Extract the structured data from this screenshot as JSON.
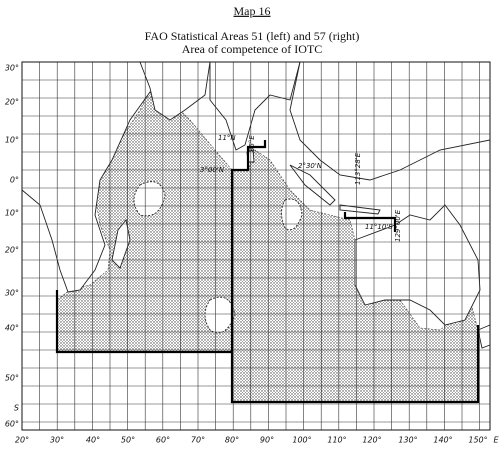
{
  "header": {
    "label": "Map 16",
    "title": "FAO Statistical Areas 51 (left) and 57 (right)",
    "subtitle": "Area of competence of IOTC"
  },
  "latitude_labels": [
    "30°",
    "20°",
    "10°",
    "0°",
    "10°",
    "20°",
    "30°",
    "40°",
    "50°",
    "S",
    "60°"
  ],
  "longitude_labels": [
    "20°",
    "30°",
    "40°",
    "50°",
    "60°",
    "70°",
    "80°",
    "90°",
    "100°",
    "110°",
    "120°",
    "130°",
    "140°",
    "150°",
    "E"
  ],
  "annotations": [
    "11°N",
    "85°E",
    "3°00'N",
    "2°30'N",
    "113°28'E",
    "11°10'S",
    "129°00'E"
  ]
}
